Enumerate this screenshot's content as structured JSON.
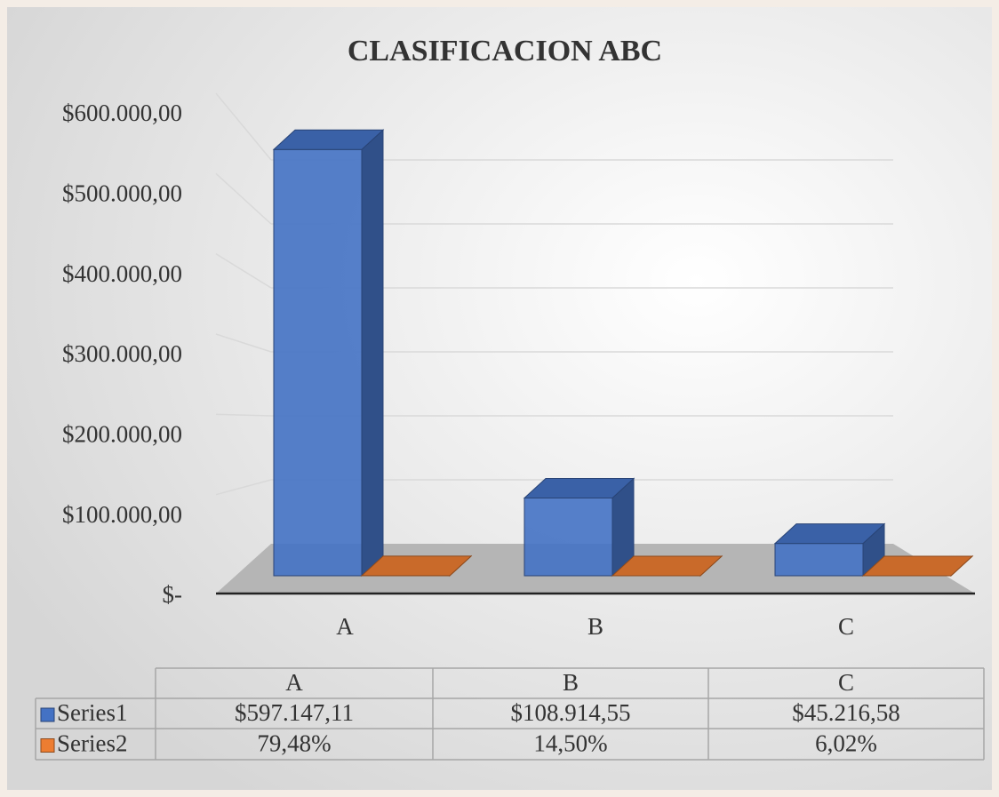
{
  "chart_data": {
    "type": "bar3d",
    "title": "CLASIFICACION ABC",
    "categories": [
      "A",
      "B",
      "C"
    ],
    "series": [
      {
        "name": "Series1",
        "color": "#4472c4",
        "values": [
          597147.11,
          108914.55,
          45216.58
        ],
        "value_labels": [
          "$597.147,11",
          "$108.914,55",
          "$45.216,58"
        ]
      },
      {
        "name": "Series2",
        "color": "#ed7d31",
        "values": [
          79.48,
          14.5,
          6.02
        ],
        "value_labels": [
          "79,48%",
          "14,50%",
          "6,02%"
        ]
      }
    ],
    "ylim": [
      0,
      600000
    ],
    "yticks": [
      {
        "value": 0,
        "label": "$-"
      },
      {
        "value": 100000,
        "label": "$100.000,00"
      },
      {
        "value": 200000,
        "label": "$200.000,00"
      },
      {
        "value": 300000,
        "label": "$300.000,00"
      },
      {
        "value": 400000,
        "label": "$400.000,00"
      },
      {
        "value": 500000,
        "label": "$500.000,00"
      },
      {
        "value": 600000,
        "label": "$600.000,00"
      }
    ],
    "grid": true,
    "data_table": true
  }
}
